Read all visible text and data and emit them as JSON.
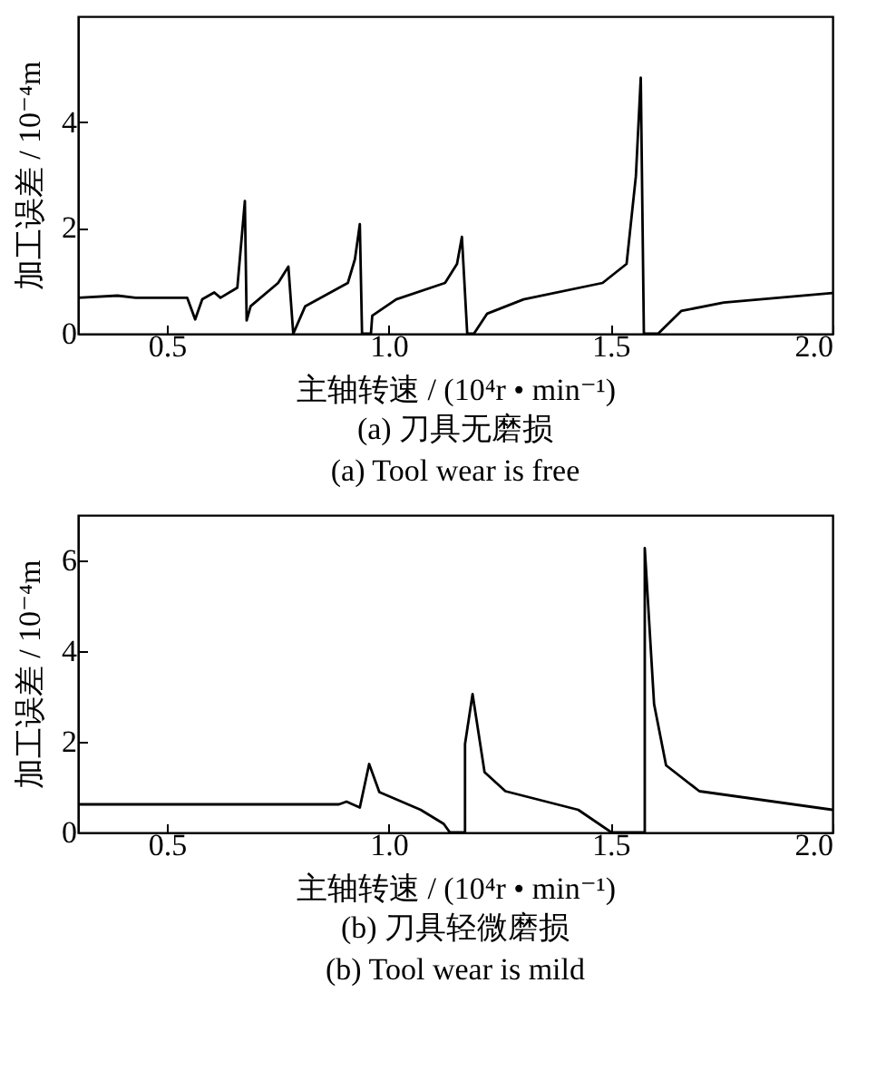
{
  "chart_data": [
    {
      "type": "line",
      "title": "(a)  刀具无磨损",
      "subtitle": "(a)  Tool wear is free",
      "xlabel": "主轴转速 / (10⁴r • min⁻¹)",
      "ylabel": "加工误差 / 10⁻⁴m",
      "xlim": [
        0.3,
        2.0
      ],
      "xticks": [
        {
          "value": 0.5,
          "label": "0.5"
        },
        {
          "value": 1.0,
          "label": "1.0"
        },
        {
          "value": 1.5,
          "label": "1.5"
        },
        {
          "value": 2.0,
          "label": "2.0"
        }
      ],
      "ylim": [
        0,
        6
      ],
      "yticks": [
        0,
        2,
        4
      ],
      "grid": false,
      "marker": "none",
      "line_style": "solid",
      "series": [
        {
          "color": "#000000",
          "x": [
            0.3,
            0.389,
            0.43,
            0.546,
            0.564,
            0.58,
            0.607,
            0.621,
            0.659,
            0.676,
            0.68,
            0.689,
            0.751,
            0.774,
            0.785,
            0.812,
            0.908,
            0.924,
            0.935,
            0.94,
            0.96,
            0.963,
            1.017,
            1.127,
            1.154,
            1.165,
            1.177,
            1.192,
            1.222,
            1.304,
            1.482,
            1.536,
            1.557,
            1.568,
            1.575,
            1.607,
            1.659,
            1.755,
            2.0
          ],
          "values": [
            0.68,
            0.72,
            0.68,
            0.68,
            0.27,
            0.65,
            0.78,
            0.68,
            0.87,
            2.51,
            0.25,
            0.52,
            0.96,
            1.27,
            0,
            0.52,
            0.96,
            1.41,
            2.07,
            0,
            0,
            0.34,
            0.65,
            0.96,
            1.32,
            1.83,
            0,
            0,
            0.38,
            0.65,
            0.96,
            1.32,
            2.98,
            4.84,
            0,
            0,
            0.43,
            0.59,
            0.77
          ]
        }
      ]
    },
    {
      "type": "line",
      "title": "(b)  刀具轻微磨损",
      "subtitle": "(b)  Tool wear is mild",
      "xlabel": "主轴转速 / (10⁴r • min⁻¹)",
      "ylabel": "加工误差 / 10⁻⁴m",
      "xlim": [
        0.3,
        2.0
      ],
      "xticks": [
        {
          "value": 0.5,
          "label": "0.5"
        },
        {
          "value": 1.0,
          "label": "1.0"
        },
        {
          "value": 1.5,
          "label": "1.5"
        },
        {
          "value": 2.0,
          "label": "2.0"
        }
      ],
      "ylim": [
        0,
        7
      ],
      "yticks": [
        0,
        2,
        4,
        6
      ],
      "grid": false,
      "marker": "none",
      "line_style": "solid",
      "series": [
        {
          "color": "#000000",
          "x": [
            0.3,
            0.888,
            0.905,
            0.935,
            0.956,
            0.979,
            1.072,
            1.124,
            1.138,
            1.172,
            1.172,
            1.189,
            1.216,
            1.263,
            1.427,
            1.502,
            1.577,
            1.577,
            1.598,
            1.625,
            1.7,
            2.0
          ],
          "values": [
            0.62,
            0.62,
            0.68,
            0.55,
            1.51,
            0.89,
            0.5,
            0.19,
            0,
            0,
            1.95,
            3.05,
            1.33,
            0.91,
            0.5,
            0,
            0,
            6.27,
            2.83,
            1.48,
            0.91,
            0.5
          ]
        }
      ]
    }
  ]
}
